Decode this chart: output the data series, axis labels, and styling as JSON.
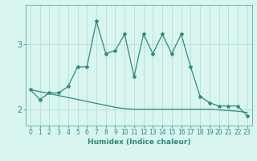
{
  "xlabel": "Humidex (Indice chaleur)",
  "x": [
    0,
    1,
    2,
    3,
    4,
    5,
    6,
    7,
    8,
    9,
    10,
    11,
    12,
    13,
    14,
    15,
    16,
    17,
    18,
    19,
    20,
    21,
    22,
    23
  ],
  "y_line": [
    2.3,
    2.15,
    2.25,
    2.25,
    2.35,
    2.65,
    2.65,
    3.35,
    2.85,
    2.9,
    3.15,
    2.5,
    3.15,
    2.85,
    3.15,
    2.85,
    3.15,
    2.65,
    2.2,
    2.1,
    2.05,
    2.05,
    2.05,
    1.9
  ],
  "y_trend": [
    2.3,
    2.27,
    2.24,
    2.21,
    2.18,
    2.15,
    2.12,
    2.09,
    2.06,
    2.03,
    2.01,
    2.0,
    2.0,
    2.0,
    2.0,
    2.0,
    2.0,
    2.0,
    2.0,
    2.0,
    1.99,
    1.98,
    1.97,
    1.95
  ],
  "line_color": "#2e8b7a",
  "bg_color": "#d8f5f0",
  "grid_color": "#b8ddd8",
  "ylim": [
    1.75,
    3.6
  ],
  "yticks": [
    2,
    3
  ],
  "xlim": [
    -0.5,
    23.5
  ],
  "marker_size": 3,
  "linewidth": 0.9,
  "xlabel_fontsize": 6.5,
  "tick_fontsize": 5.5
}
